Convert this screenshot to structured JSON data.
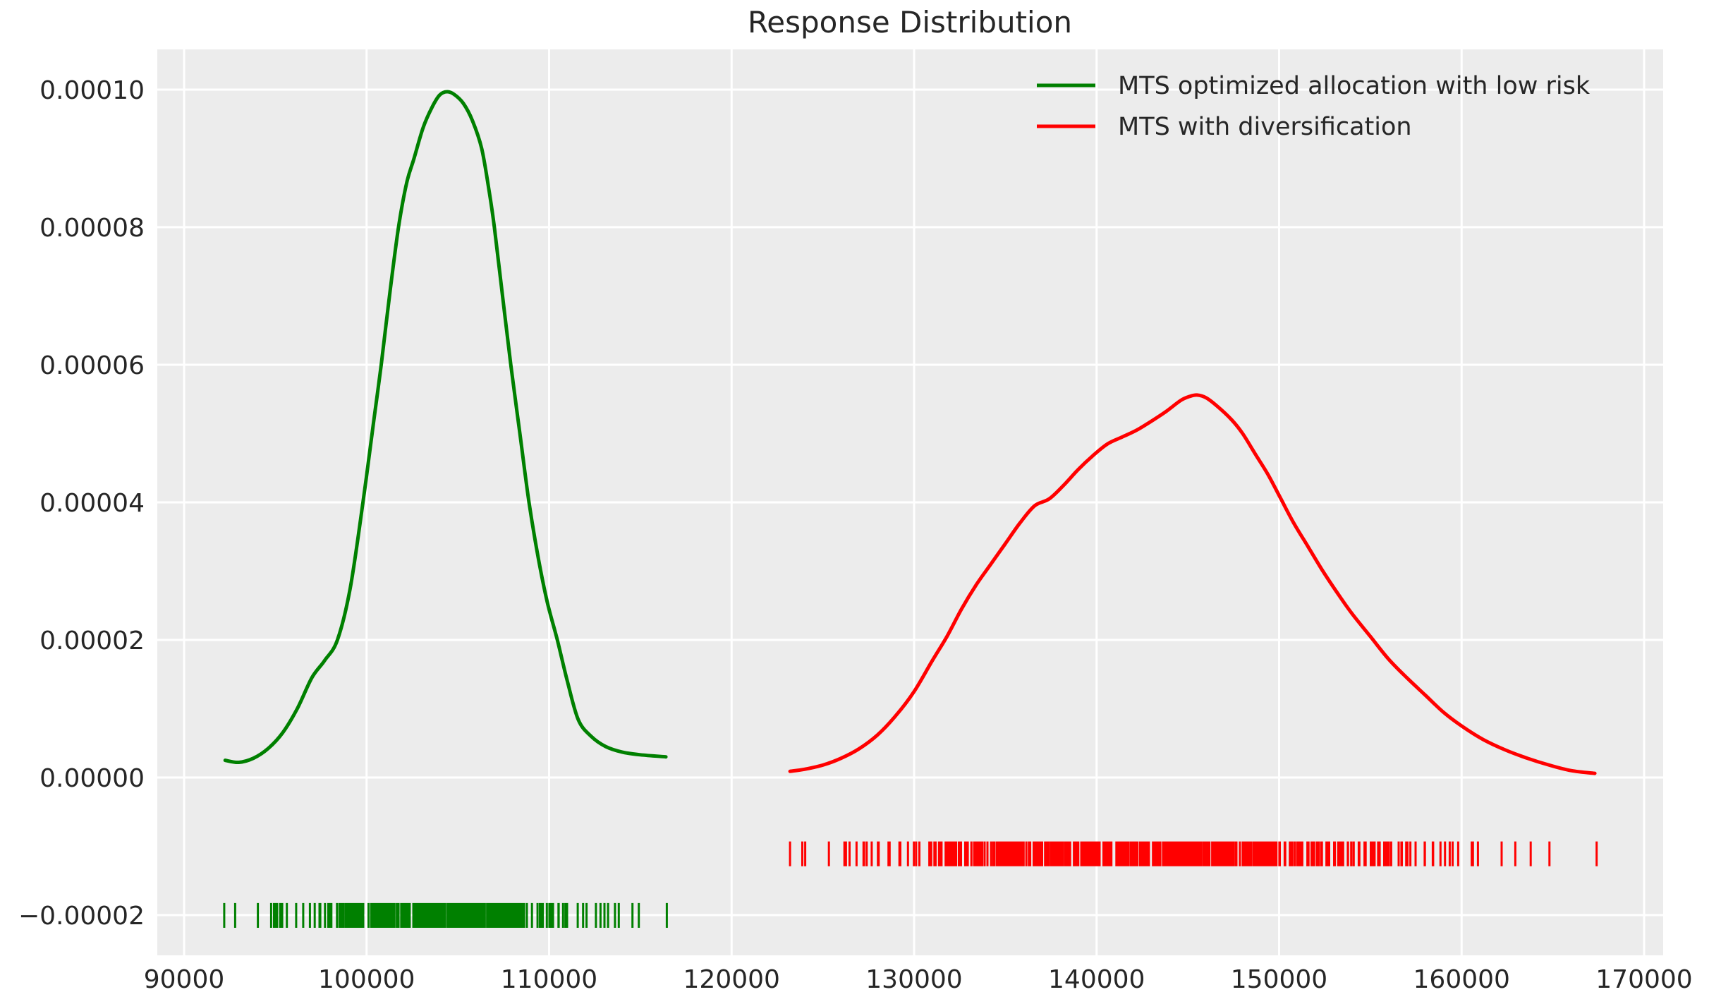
{
  "chart_data": {
    "type": "line",
    "title": "Response Distribution",
    "xlabel": "",
    "ylabel": "",
    "grid": true,
    "legend_position": "upper right",
    "background_color": "#ffffff",
    "plot_background_color": "#ececec",
    "grid_color": "#ffffff",
    "text_color": "#262626",
    "xlim": [
      88531,
      171043
    ],
    "ylim": [
      -2.585e-05,
      0.00010585
    ],
    "x_ticks": {
      "values": [
        90000,
        100000,
        110000,
        120000,
        130000,
        140000,
        150000,
        160000,
        170000
      ],
      "labels": [
        "90000",
        "100000",
        "110000",
        "120000",
        "130000",
        "140000",
        "150000",
        "160000",
        "170000"
      ]
    },
    "y_ticks": {
      "values": [
        0.0001,
        8e-05,
        6e-05,
        4e-05,
        2e-05,
        0.0,
        -2e-05
      ],
      "labels": [
        "0.00010",
        "0.00008",
        "0.00006",
        "0.00004",
        "0.00002",
        "0.00000",
        "−0.00002"
      ]
    },
    "y_value_scale": 1e-05,
    "series": [
      {
        "name": "MTS optimized allocation with low risk",
        "color": "#008000",
        "curve_type": "kde",
        "peak": {
          "x": 104400,
          "y_1e5": 9.97
        },
        "x": [
          92250,
          93000,
          93800,
          94600,
          95400,
          96200,
          97000,
          97700,
          98400,
          99100,
          99800,
          100400,
          100800,
          101300,
          101750,
          102200,
          102600,
          103100,
          103600,
          104000,
          104400,
          104800,
          105300,
          105800,
          106300,
          106700,
          107000,
          107450,
          107900,
          108400,
          108900,
          109400,
          109900,
          110450,
          111000,
          111600,
          112300,
          113100,
          114000,
          115000,
          116400
        ],
        "y_1e5": [
          0.25,
          0.22,
          0.28,
          0.42,
          0.65,
          1.0,
          1.45,
          1.7,
          2.0,
          2.75,
          4.0,
          5.2,
          6.0,
          7.1,
          8.0,
          8.65,
          9.0,
          9.45,
          9.75,
          9.92,
          9.97,
          9.93,
          9.8,
          9.55,
          9.15,
          8.55,
          8.0,
          7.0,
          6.0,
          5.0,
          4.0,
          3.2,
          2.55,
          2.0,
          1.4,
          0.84,
          0.6,
          0.45,
          0.37,
          0.33,
          0.3
        ],
        "rug": {
          "row_value": -2.005e-05,
          "tick_height_value": 3.6e-06,
          "min": 92200,
          "max": 116450,
          "count": 400,
          "seed": 3
        }
      },
      {
        "name": "MTS with diversification",
        "color": "#ff0000",
        "curve_type": "kde",
        "peak": {
          "x": 145500,
          "y_1e5": 5.56
        },
        "x": [
          123200,
          124000,
          125000,
          126000,
          127000,
          128000,
          129000,
          130000,
          131000,
          131800,
          132600,
          133400,
          134200,
          135000,
          135800,
          136600,
          137400,
          138200,
          139000,
          139800,
          140600,
          141400,
          142200,
          143000,
          143800,
          144600,
          145100,
          145500,
          146000,
          146600,
          147400,
          148000,
          148700,
          149400,
          150100,
          150800,
          151600,
          152400,
          153200,
          154000,
          155000,
          156000,
          157000,
          158000,
          159000,
          160000,
          161200,
          162400,
          163600,
          164800,
          166000,
          167300
        ],
        "y_1e5": [
          0.09,
          0.12,
          0.18,
          0.28,
          0.42,
          0.62,
          0.9,
          1.25,
          1.7,
          2.05,
          2.45,
          2.8,
          3.1,
          3.4,
          3.7,
          3.95,
          4.05,
          4.25,
          4.48,
          4.68,
          4.85,
          4.95,
          5.05,
          5.18,
          5.32,
          5.48,
          5.54,
          5.56,
          5.52,
          5.4,
          5.2,
          5.0,
          4.7,
          4.4,
          4.05,
          3.7,
          3.35,
          3.0,
          2.68,
          2.38,
          2.05,
          1.72,
          1.45,
          1.2,
          0.95,
          0.75,
          0.55,
          0.4,
          0.28,
          0.18,
          0.1,
          0.06
        ],
        "rug": {
          "row_value": -1.11e-05,
          "tick_height_value": 3.6e-06,
          "min": 123200,
          "max": 167400,
          "count": 550,
          "seed": 11
        }
      }
    ]
  }
}
